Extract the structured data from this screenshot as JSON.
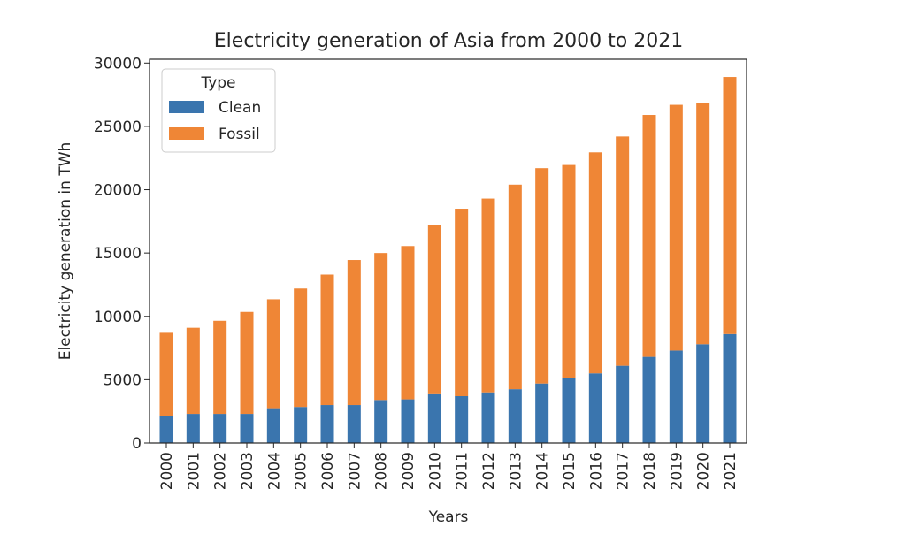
{
  "chart_data": {
    "type": "bar",
    "stacked": true,
    "title": "Electricity generation of Asia from 2000 to 2021",
    "xlabel": "Years",
    "ylabel": "Electricity generation in TWh",
    "ylim": [
      0,
      30300
    ],
    "yticks": [
      "0",
      "5000",
      "10000",
      "15000",
      "20000",
      "25000",
      "30000"
    ],
    "categories": [
      "2000",
      "2001",
      "2002",
      "2003",
      "2004",
      "2005",
      "2006",
      "2007",
      "2008",
      "2009",
      "2010",
      "2011",
      "2012",
      "2013",
      "2014",
      "2015",
      "2016",
      "2017",
      "2018",
      "2019",
      "2020",
      "2021"
    ],
    "series": [
      {
        "name": "Clean",
        "color": "#3a75ae",
        "values": [
          2150,
          2300,
          2300,
          2300,
          2750,
          2850,
          3000,
          3000,
          3400,
          3450,
          3850,
          3700,
          4000,
          4250,
          4700,
          5100,
          5500,
          6100,
          6800,
          7300,
          7800,
          8600
        ]
      },
      {
        "name": "Fossil",
        "color": "#ef8636",
        "values": [
          6550,
          6800,
          7350,
          8050,
          8600,
          9350,
          10300,
          11450,
          11600,
          12100,
          13350,
          14800,
          15300,
          16150,
          17000,
          16850,
          17450,
          18100,
          19100,
          19400,
          19050,
          20300
        ]
      }
    ],
    "legend": {
      "title": "Type",
      "position": "top-left"
    },
    "grid": false
  }
}
